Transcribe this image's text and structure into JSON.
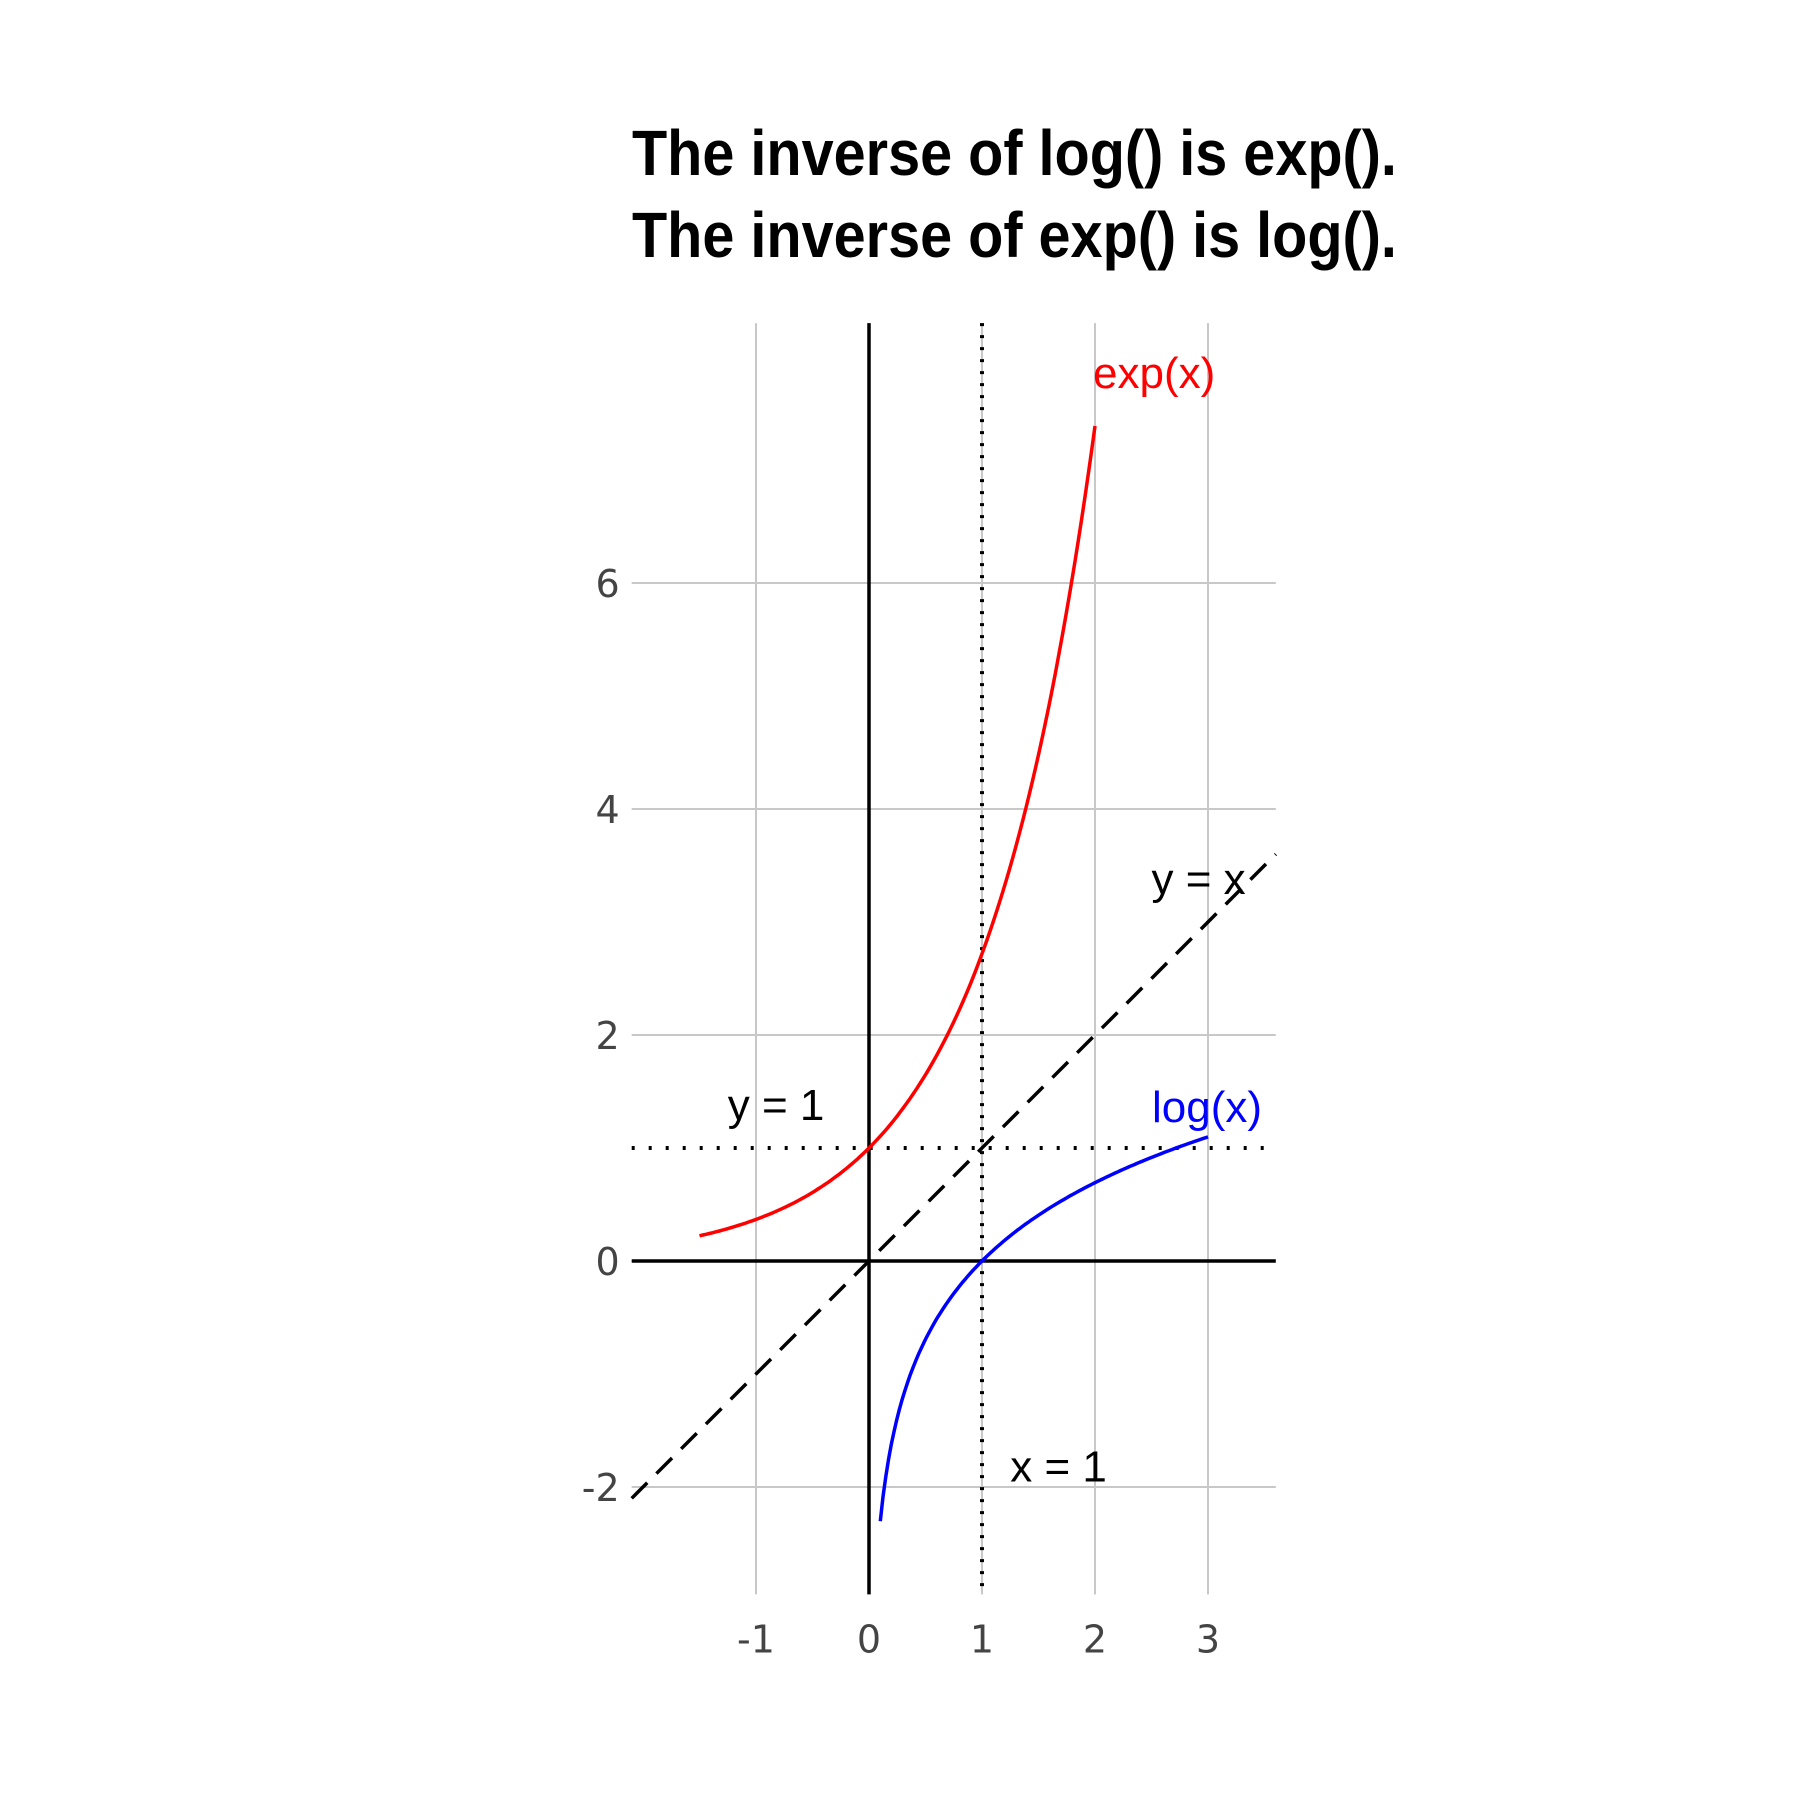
{
  "chart_data": {
    "type": "line",
    "title_lines": [
      "The inverse of log() is exp().",
      "The inverse of exp() is log()."
    ],
    "xlabel": "",
    "ylabel": "",
    "xlim": [
      -2.1,
      3.6
    ],
    "ylim": [
      -2.95,
      8.3
    ],
    "x_ticks": [
      -1,
      0,
      1,
      2,
      3
    ],
    "y_ticks": [
      -2,
      0,
      2,
      4,
      6
    ],
    "grid": true,
    "colors": {
      "exp": "#ff0000",
      "log": "#0000ff",
      "reference": "#000000",
      "grid": "#c8c8c8",
      "ticks": "#444444"
    },
    "series": [
      {
        "label": "exp(x)",
        "color": "#ff0000",
        "x": [
          -1.5,
          -1.0,
          -0.5,
          0.0,
          0.25,
          0.5,
          0.75,
          1.0,
          1.25,
          1.5,
          1.75,
          2.0
        ],
        "y": [
          0.223,
          0.368,
          0.607,
          1.0,
          1.284,
          1.649,
          2.117,
          2.718,
          3.49,
          4.482,
          5.755,
          7.389
        ]
      },
      {
        "label": "log(x)",
        "color": "#0000ff",
        "x": [
          0.1,
          0.2,
          0.3,
          0.5,
          0.75,
          1.0,
          1.5,
          2.0,
          2.5,
          3.0
        ],
        "y": [
          -2.303,
          -1.609,
          -1.204,
          -0.693,
          -0.288,
          0.0,
          0.405,
          0.693,
          0.916,
          1.099
        ]
      }
    ],
    "reference_lines": [
      {
        "label": "y = x",
        "kind": "diagonal",
        "style": "dashed"
      },
      {
        "label": "y = 1",
        "kind": "horizontal",
        "value": 1,
        "style": "dotted"
      },
      {
        "label": "x = 1",
        "kind": "vertical",
        "value": 1,
        "style": "dotted"
      }
    ],
    "axes_lines": [
      {
        "kind": "horizontal",
        "value": 0
      },
      {
        "kind": "vertical",
        "value": 0
      }
    ]
  }
}
